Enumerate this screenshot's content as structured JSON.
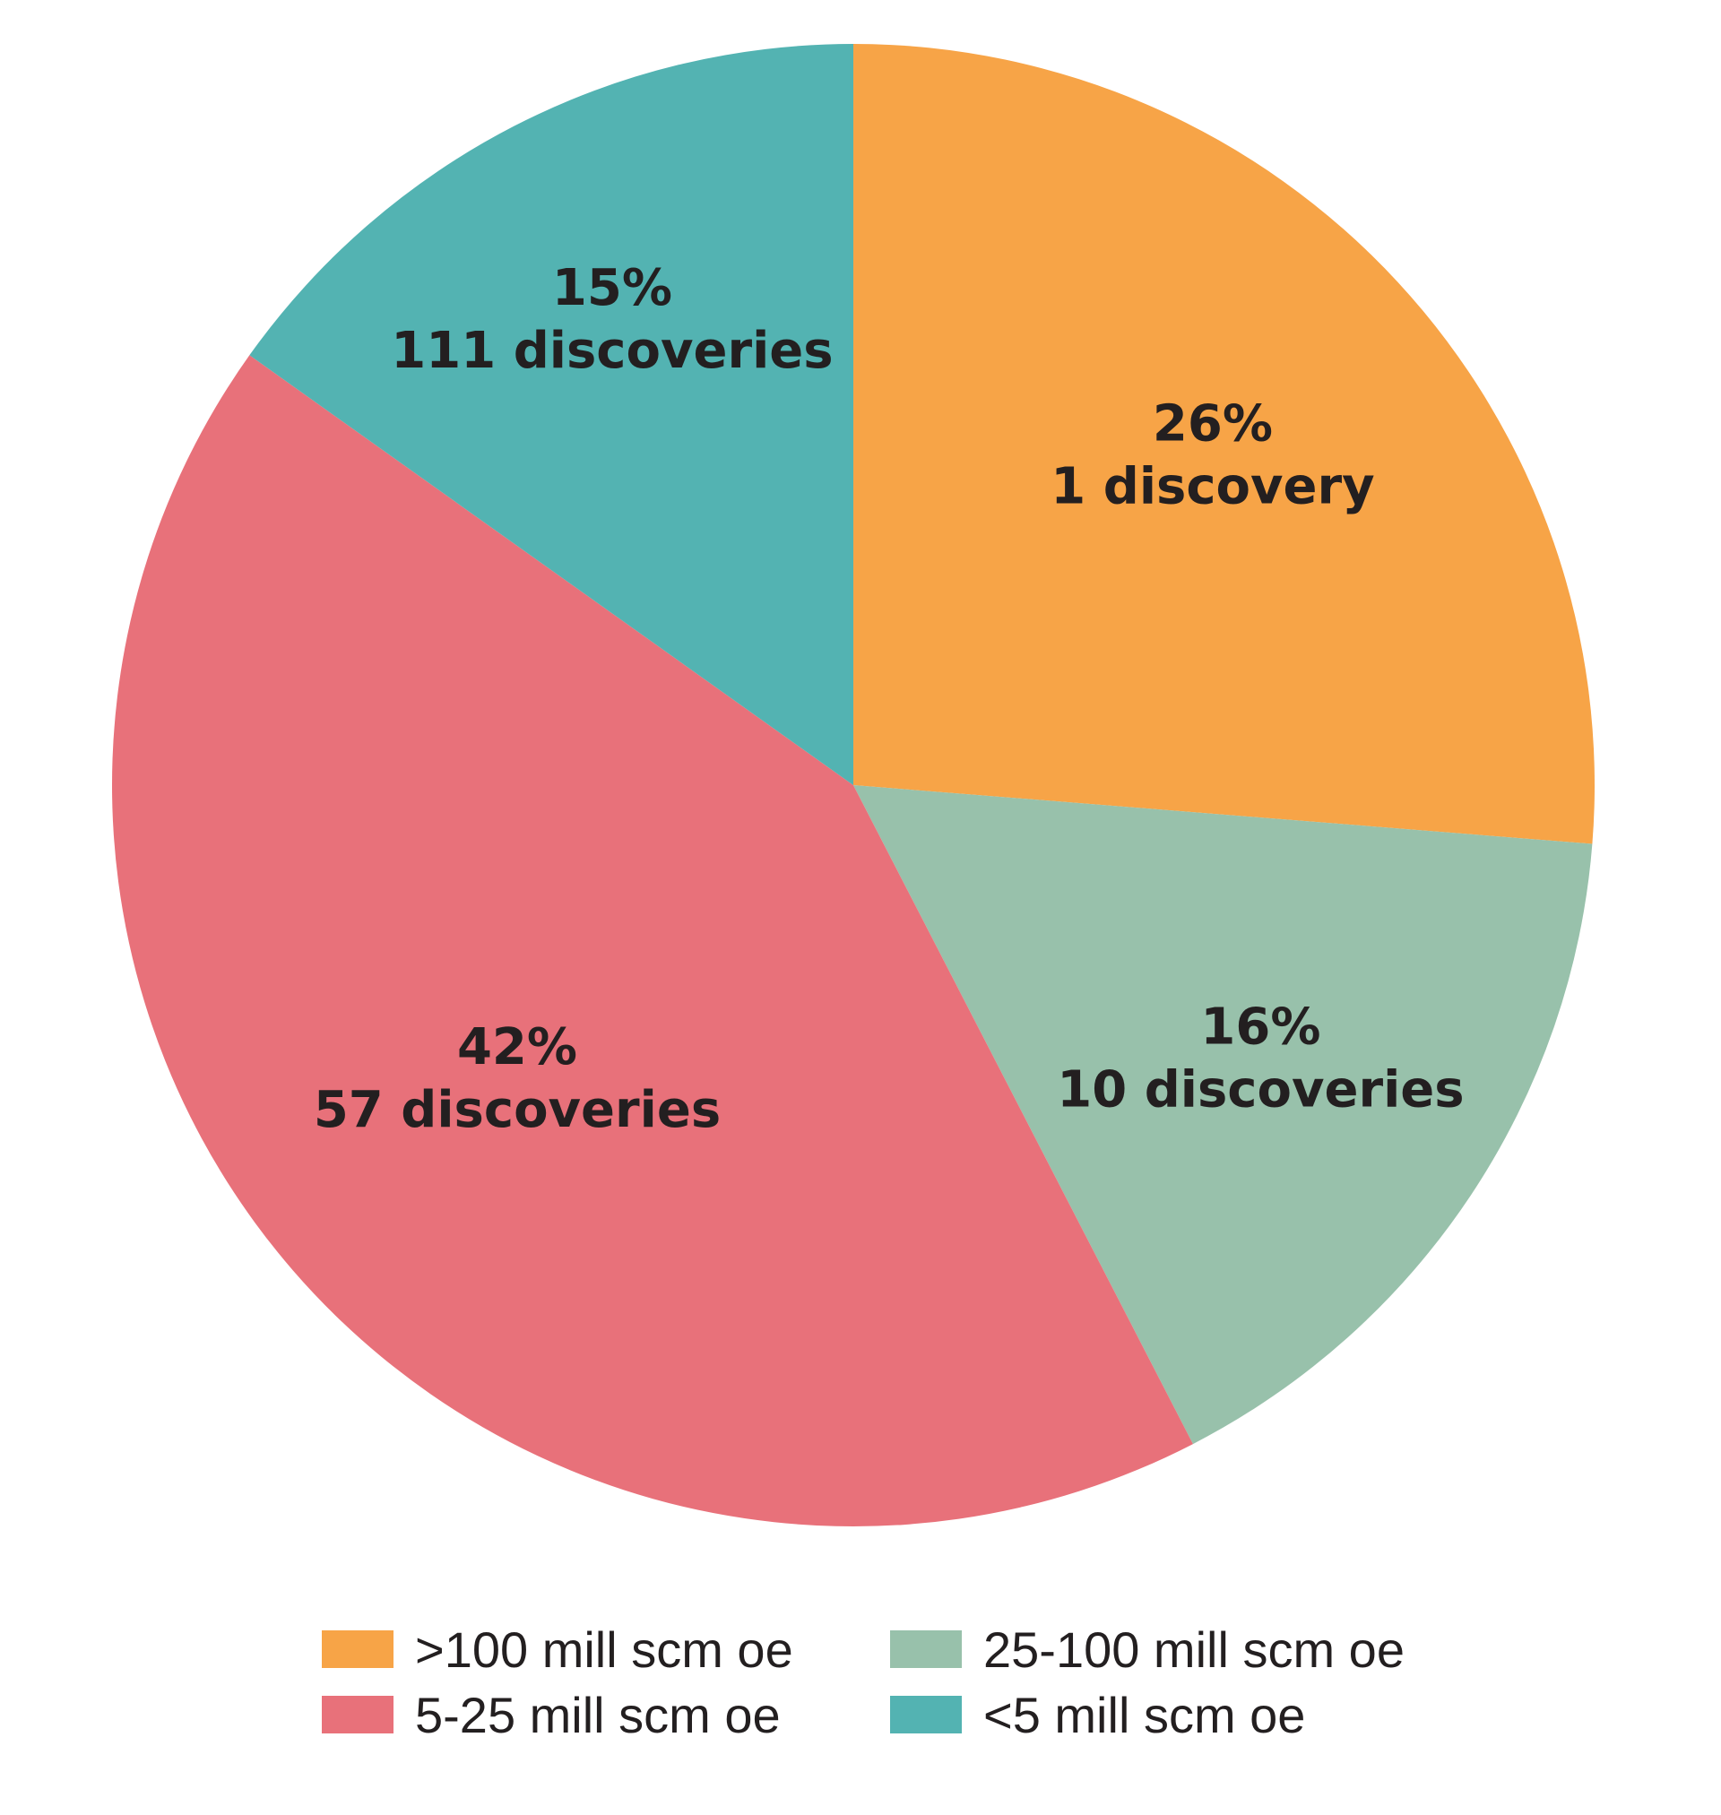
{
  "chart_data": {
    "type": "pie",
    "title": "",
    "slices": [
      {
        "label": ">100 mill scm oe",
        "value": 26,
        "percent_label": "26%",
        "count_label": "1 discovery",
        "color": "#f7a447"
      },
      {
        "label": "25-100 mill scm oe",
        "value": 16,
        "percent_label": "16%",
        "count_label": "10 discoveries",
        "color": "#98c1ab"
      },
      {
        "label": "5-25 mill scm oe",
        "value": 42,
        "percent_label": "42%",
        "count_label": "57 discoveries",
        "color": "#e8717a"
      },
      {
        "label": "<5 mill scm oe",
        "value": 15,
        "percent_label": "15%",
        "count_label": "111 discoveries",
        "color": "#53b3b2"
      }
    ],
    "start_angle": "12 o'clock",
    "direction": "clockwise",
    "legend": {
      "placement": "bottom",
      "columns": 2,
      "order": [
        ">100 mill scm oe",
        "25-100 mill scm oe",
        "5-25 mill scm oe",
        "<5 mill scm oe"
      ]
    }
  }
}
